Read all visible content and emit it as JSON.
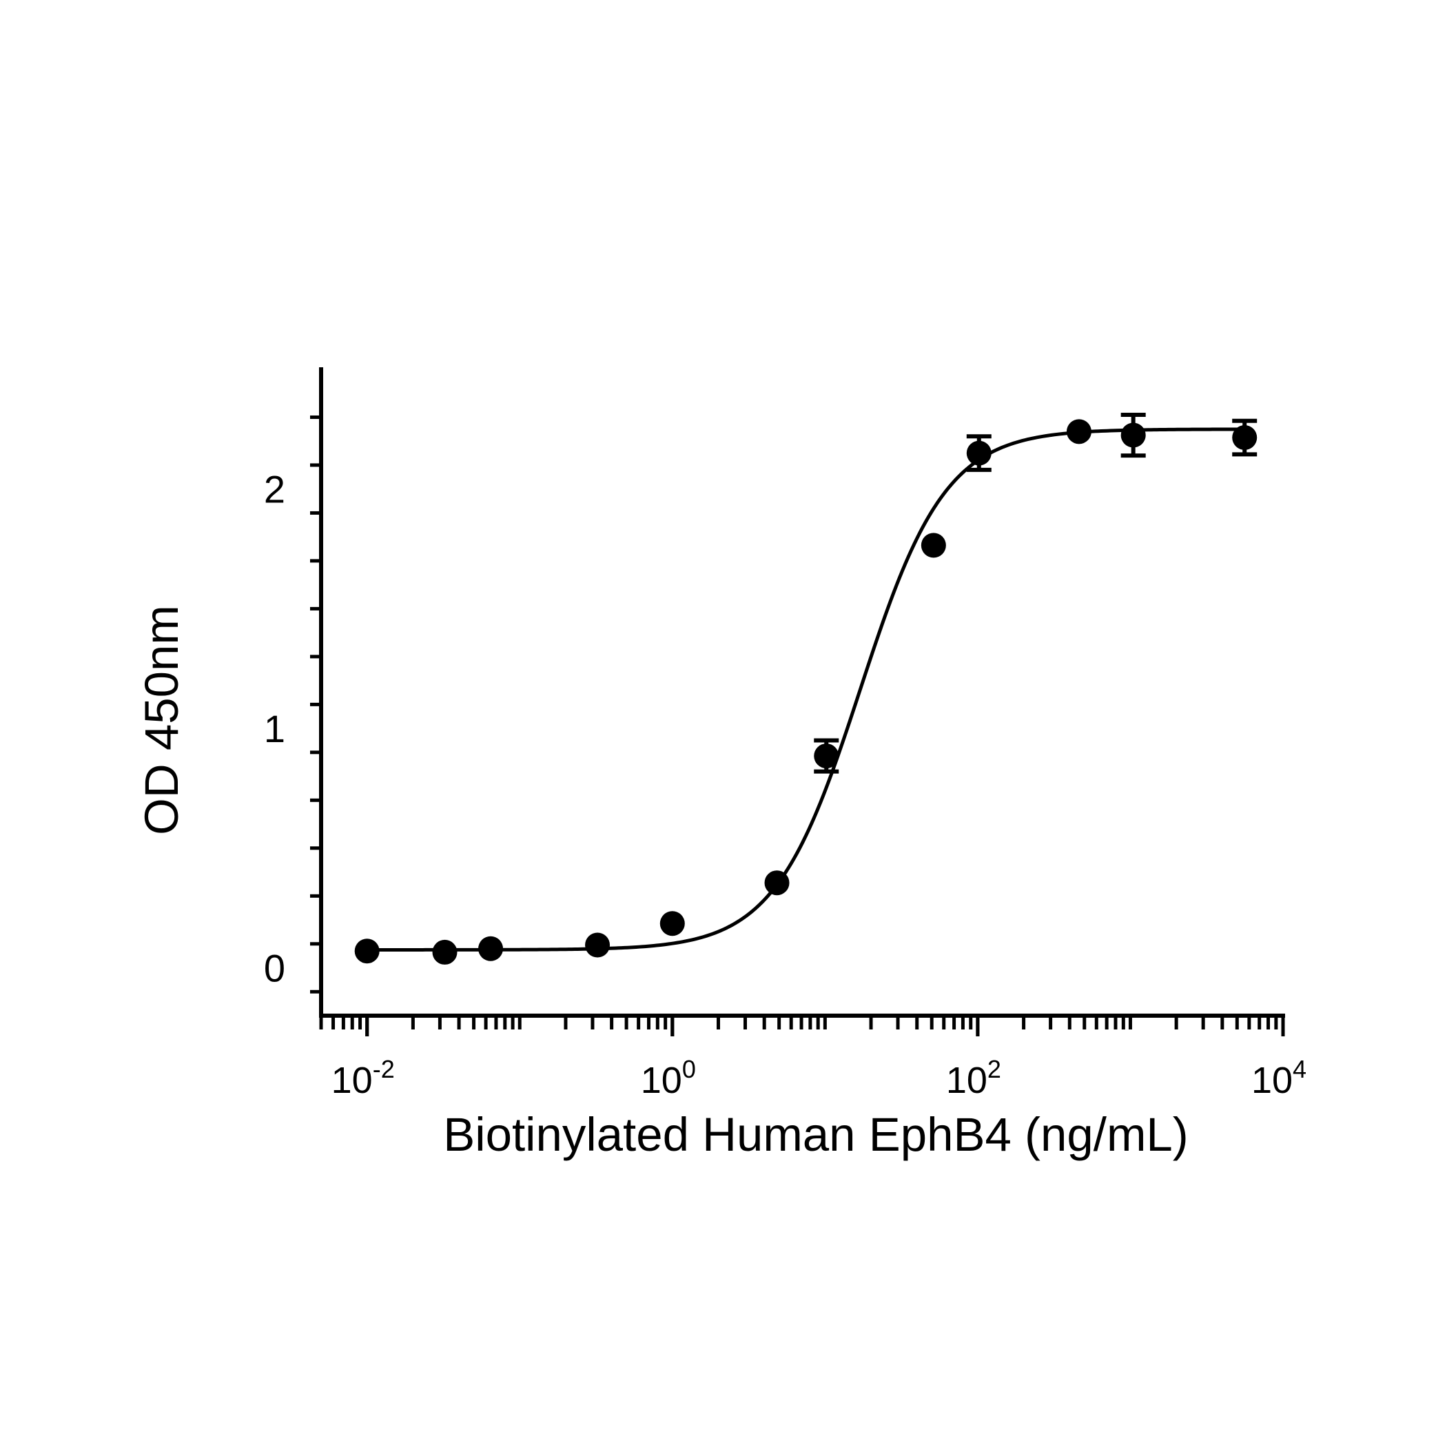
{
  "chart_data": {
    "type": "scatter",
    "title": "",
    "xlabel": "Biotinylated Human EphB4 (ng/mL)",
    "ylabel": "OD 450nm",
    "x_scale": "log",
    "xlim": [
      0.005,
      10000
    ],
    "ylim": [
      -0.2,
      2.5
    ],
    "grid": false,
    "x_ticks": [
      {
        "value": 0.01,
        "base": "10",
        "exp": "-2"
      },
      {
        "value": 1,
        "base": "10",
        "exp": "0"
      },
      {
        "value": 100,
        "base": "10",
        "exp": "2"
      },
      {
        "value": 10000,
        "base": "10",
        "exp": "4"
      }
    ],
    "y_ticks": [
      {
        "value": 0,
        "label": "0"
      },
      {
        "value": 1,
        "label": "1"
      },
      {
        "value": 2,
        "label": "2"
      }
    ],
    "series": [
      {
        "points": [
          {
            "x": 0.01,
            "y": 0.07,
            "err": 0
          },
          {
            "x": 0.0323,
            "y": 0.065,
            "err": 0
          },
          {
            "x": 0.0645,
            "y": 0.08,
            "err": 0
          },
          {
            "x": 0.323,
            "y": 0.095,
            "err": 0
          },
          {
            "x": 1.0,
            "y": 0.185,
            "err": 0
          },
          {
            "x": 4.84,
            "y": 0.355,
            "err": 0
          },
          {
            "x": 10.2,
            "y": 0.885,
            "err": 0.065
          },
          {
            "x": 51.4,
            "y": 1.765,
            "err": 0
          },
          {
            "x": 102,
            "y": 2.15,
            "err": 0.07
          },
          {
            "x": 461,
            "y": 2.24,
            "err": 0
          },
          {
            "x": 1045,
            "y": 2.225,
            "err": 0.085
          },
          {
            "x": 5600,
            "y": 2.215,
            "err": 0.07
          }
        ],
        "fit": {
          "model": "4PL",
          "bottom": 0.075,
          "top": 2.25,
          "ec50": 17,
          "hill": 1.55
        }
      }
    ],
    "colors": {
      "marker": "#000000",
      "line": "#000000",
      "axis": "#000000"
    }
  }
}
